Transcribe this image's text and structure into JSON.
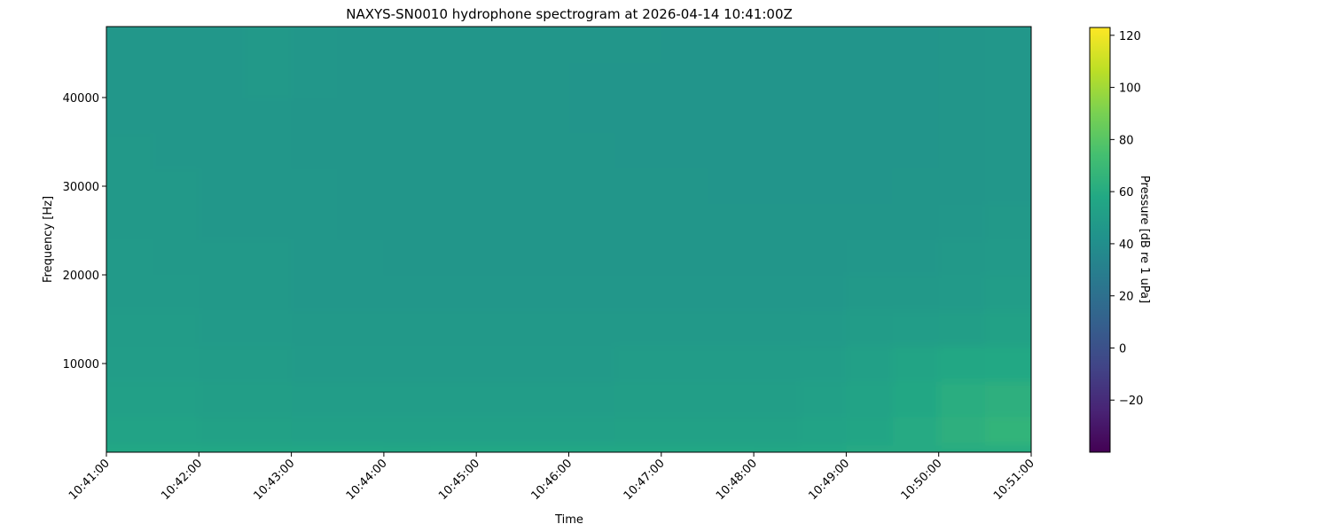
{
  "chart_data": {
    "type": "heatmap",
    "title": "NAXYS-SN0010 hydrophone spectrogram at 2026-04-14 10:41:00Z",
    "xlabel": "Time",
    "ylabel": "Frequency [Hz]",
    "colorbar_label": "Pressure [dB re 1 uPa]",
    "colormap": "viridis",
    "color_range": [
      -40,
      123
    ],
    "colorbar_ticks": [
      -20,
      0,
      20,
      40,
      60,
      80,
      100,
      120
    ],
    "colorbar_tick_labels": [
      "−20",
      "0",
      "20",
      "40",
      "60",
      "80",
      "100",
      "120"
    ],
    "x_range": [
      "10:41:00",
      "10:51:00"
    ],
    "x_ticks": [
      "10:41:00",
      "10:42:00",
      "10:43:00",
      "10:44:00",
      "10:45:00",
      "10:46:00",
      "10:47:00",
      "10:48:00",
      "10:49:00",
      "10:50:00",
      "10:51:00"
    ],
    "y_range": [
      0,
      48000
    ],
    "y_ticks": [
      10000,
      20000,
      30000,
      40000
    ],
    "y_tick_labels": [
      "10000",
      "20000",
      "30000",
      "40000"
    ],
    "grid": false,
    "time_bin_seconds": 30,
    "freq_edges": [
      0,
      800,
      4000,
      8000,
      12000,
      16000,
      20000,
      24000,
      28000,
      32000,
      36000,
      40000,
      44000,
      48000
    ],
    "values": [
      [
        58,
        58,
        58,
        58,
        58,
        58,
        57,
        58,
        58,
        58,
        58,
        58,
        58,
        58,
        57,
        58,
        59,
        59,
        60,
        60
      ],
      [
        54,
        54,
        53,
        53,
        52,
        52,
        52,
        52,
        52,
        52,
        52,
        53,
        53,
        53,
        53,
        54,
        56,
        59,
        63,
        66
      ],
      [
        52,
        52,
        51,
        51,
        50,
        50,
        50,
        50,
        50,
        50,
        50,
        51,
        51,
        51,
        51,
        52,
        54,
        57,
        61,
        63
      ],
      [
        50,
        50,
        49,
        49,
        48,
        48,
        48,
        48,
        48,
        48,
        48,
        49,
        49,
        49,
        49,
        50,
        52,
        55,
        57,
        58
      ],
      [
        49,
        49,
        48,
        48,
        47,
        47,
        47,
        47,
        47,
        47,
        47,
        47,
        47,
        47,
        47,
        48,
        49,
        50,
        51,
        53
      ],
      [
        48,
        48,
        47,
        47,
        46,
        46,
        46,
        46,
        46,
        46,
        46,
        46,
        46,
        46,
        46,
        46,
        47,
        47,
        48,
        50
      ],
      [
        48,
        47,
        47,
        47,
        46,
        46,
        45,
        45,
        45,
        45,
        45,
        45,
        45,
        45,
        45,
        45,
        46,
        46,
        47,
        48
      ],
      [
        47,
        47,
        46,
        46,
        46,
        45,
        45,
        45,
        45,
        45,
        45,
        45,
        45,
        45,
        45,
        45,
        45,
        45,
        46,
        47
      ],
      [
        47,
        47,
        46,
        46,
        46,
        45,
        45,
        45,
        45,
        45,
        45,
        45,
        45,
        44,
        44,
        44,
        44,
        45,
        45,
        46
      ],
      [
        47,
        46,
        46,
        46,
        45,
        45,
        45,
        45,
        45,
        45,
        45,
        44,
        44,
        44,
        44,
        44,
        44,
        44,
        45,
        46
      ],
      [
        46,
        46,
        46,
        46,
        45,
        45,
        45,
        45,
        45,
        45,
        44,
        44,
        44,
        44,
        44,
        44,
        44,
        44,
        45,
        46
      ],
      [
        46,
        46,
        46,
        47,
        46,
        45,
        45,
        45,
        45,
        45,
        44,
        44,
        44,
        44,
        44,
        44,
        44,
        44,
        45,
        46
      ],
      [
        46,
        46,
        46,
        47,
        46,
        45,
        45,
        45,
        45,
        45,
        45,
        45,
        44,
        44,
        44,
        44,
        44,
        44,
        45,
        46
      ]
    ]
  }
}
